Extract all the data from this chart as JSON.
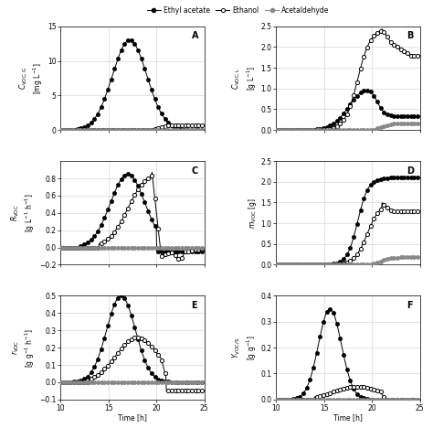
{
  "xlim": [
    10,
    25
  ],
  "xticks": [
    10,
    15,
    20,
    25
  ],
  "panel_labels": [
    "A",
    "B",
    "C",
    "D",
    "E",
    "F"
  ],
  "ylims": {
    "A": [
      0,
      15
    ],
    "B": [
      0,
      2.5
    ],
    "C": [
      -0.2,
      1.0
    ],
    "D": [
      0,
      2.5
    ],
    "E": [
      -0.1,
      0.5
    ],
    "F": [
      0,
      0.4
    ]
  },
  "yticks": {
    "A": [
      0,
      5,
      10,
      15
    ],
    "B": [
      0,
      0.5,
      1.0,
      1.5,
      2.0,
      2.5
    ],
    "C": [
      -0.2,
      0.0,
      0.2,
      0.4,
      0.6,
      0.8
    ],
    "D": [
      0,
      0.5,
      1.0,
      1.5,
      2.0,
      2.5
    ],
    "E": [
      -0.1,
      0.0,
      0.1,
      0.2,
      0.3,
      0.4,
      0.5
    ],
    "F": [
      0,
      0.1,
      0.2,
      0.3,
      0.4
    ]
  },
  "ylabels": {
    "A": "$C_{\\mathrm{VOC,G}}$\n[mg L$^{-1}$]",
    "B": "$C_{\\mathrm{VOC,L}}$\n[g L$^{-1}$]",
    "C": "$R_{\\mathrm{VOC}}$\n[g L$^{-1}$ h$^{-1}$]",
    "D": "$m_{\\mathrm{VOC}}$ [g]",
    "E": "$r_{\\mathrm{VOC}}$\n[g g$^{-1}$ h$^{-1}$]",
    "F": "$Y_{\\mathrm{VOC/S}}$\n[g g$^{-1}$]"
  },
  "xlabel": "Time [h]",
  "background_color": "#ffffff",
  "grid_color": "#cccccc",
  "legend_labels": [
    "Ethyl acetate",
    "Ethanol",
    "Acetaldehyde"
  ]
}
